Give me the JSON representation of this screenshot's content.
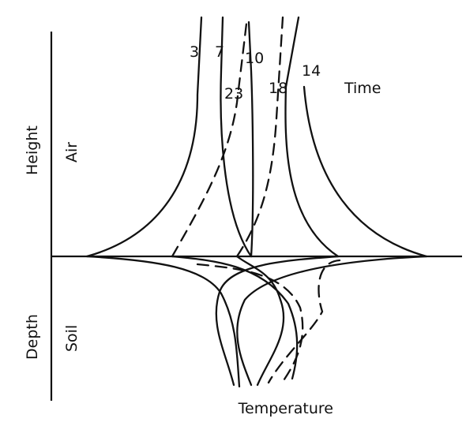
{
  "figure": {
    "axis_labels": {
      "height": "Height",
      "air": "Air",
      "depth": "Depth",
      "soil": "Soil",
      "temperature": "Temperature",
      "time": "Time"
    },
    "curves": [
      {
        "label": "3",
        "style": "solid"
      },
      {
        "label": "7",
        "style": "dashed"
      },
      {
        "label": "10",
        "style": "solid"
      },
      {
        "label": "23",
        "style": "dashed"
      },
      {
        "label": "18",
        "style": "dashed"
      },
      {
        "label": "14",
        "style": "solid"
      }
    ]
  }
}
